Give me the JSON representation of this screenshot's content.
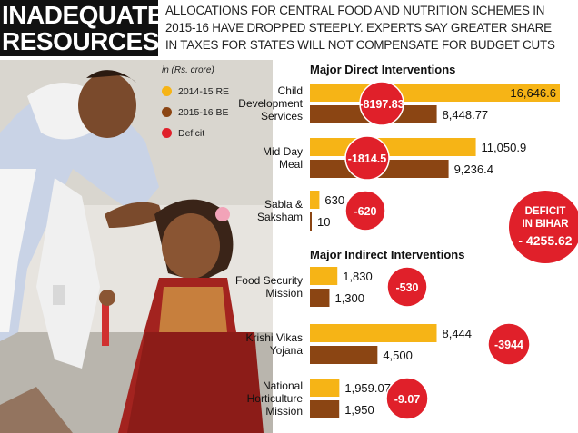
{
  "header": {
    "title_line1": "INADEQUATE",
    "title_line2": "RESOURCES",
    "subhead_line1": "ALLOCATIONS FOR CENTRAL FOOD AND NUTRITION SCHEMES IN",
    "subhead_line2": "2015-16 HAVE DROPPED STEEPLY. EXPERTS SAY GREATER SHARE",
    "subhead_line3": "IN TAXES FOR STATES WILL NOT COMPENSATE FOR BUDGET CUTS"
  },
  "legend": {
    "unit": "in (Rs. crore)",
    "items": [
      {
        "label": "2014-15 RE",
        "color": "#f6b416"
      },
      {
        "label": "2015-16 BE",
        "color": "#8b4513"
      },
      {
        "label": "Deficit",
        "color": "#e0202a"
      }
    ]
  },
  "colors": {
    "re": "#f6b416",
    "be": "#8b4513",
    "deficit": "#e0202a"
  },
  "chart_data": {
    "type": "bar",
    "orientation": "horizontal",
    "unit": "in (Rs. crore)",
    "series_names": [
      "2014-15 RE",
      "2015-16 BE",
      "Deficit"
    ],
    "groups": [
      {
        "title": "Major Direct Interventions",
        "items": [
          {
            "label_lines": [
              "Child",
              "Development",
              "Services"
            ],
            "re": 16646.6,
            "be": 8448.77,
            "re_label": "16,646.6",
            "be_label": "8,448.77",
            "deficit": "-8197.83"
          },
          {
            "label_lines": [
              "Mid Day",
              "Meal"
            ],
            "re": 11050.9,
            "be": 9236.4,
            "re_label": "11,050.9",
            "be_label": "9,236.4",
            "deficit": "-1814.5"
          },
          {
            "label_lines": [
              "Sabla &",
              "Saksham"
            ],
            "re": 630,
            "be": 10,
            "re_label": "630",
            "be_label": "10",
            "deficit": "-620"
          }
        ]
      },
      {
        "title": "Major Indirect Interventions",
        "items": [
          {
            "label_lines": [
              "Food Security",
              "Mission"
            ],
            "re": 1830,
            "be": 1300,
            "re_label": "1,830",
            "be_label": "1,300",
            "deficit": "-530"
          },
          {
            "label_lines": [
              "Krishi Vikas",
              "Yojana"
            ],
            "re": 8444,
            "be": 4500,
            "re_label": "8,444",
            "be_label": "4,500",
            "deficit": "-3944"
          },
          {
            "label_lines": [
              "National",
              "Horticulture",
              "Mission"
            ],
            "re": 1959.07,
            "be": 1950,
            "re_label": "1,959.07",
            "be_label": "1,950",
            "deficit": "-9.07"
          }
        ]
      }
    ],
    "callout": {
      "lines": [
        "DEFICIT",
        "IN BIHAR"
      ],
      "value": "- 4255.62"
    }
  }
}
